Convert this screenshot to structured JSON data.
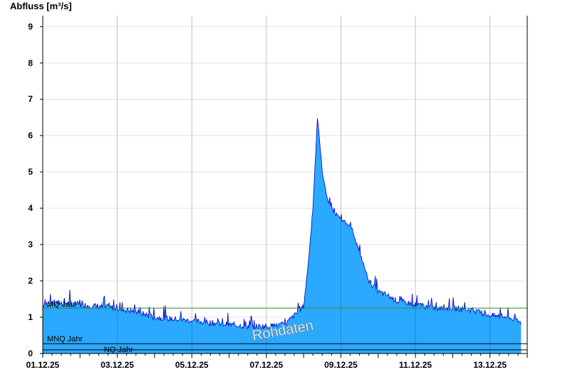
{
  "chart_data": {
    "type": "area",
    "title": "",
    "xlabel": "",
    "ylabel": "Abfluss [m³/s]",
    "ylim": [
      0,
      9.3
    ],
    "yticks": [
      0,
      1,
      2,
      3,
      4,
      5,
      6,
      7,
      8,
      9
    ],
    "xlim": [
      "2025-12-01T00:00",
      "2025-12-14T00:00"
    ],
    "x_tick_labels": [
      "01.12.25",
      "03.12.25",
      "05.12.25",
      "07.12.25",
      "09.12.25",
      "11.12.25",
      "13.12.25"
    ],
    "grid": true,
    "fill_color": "#2aa9ff",
    "line_color": "#0000cc",
    "watermark": "Rohdaten",
    "reference_lines": [
      {
        "label": "MQ Jahr",
        "value": 1.25,
        "color": "#2e8b2e"
      },
      {
        "label": "MNQ Jahr",
        "value": 0.27,
        "color": "#000000"
      },
      {
        "label": "NQ Jahr",
        "value": 0.1,
        "color": "#000000"
      }
    ],
    "series": [
      {
        "x": [
          "2025-12-01T00:00",
          "2025-12-01T12:00",
          "2025-12-02T00:00",
          "2025-12-02T12:00",
          "2025-12-03T00:00",
          "2025-12-03T12:00",
          "2025-12-04T00:00",
          "2025-12-04T12:00",
          "2025-12-05T00:00",
          "2025-12-05T12:00",
          "2025-12-06T00:00",
          "2025-12-06T12:00",
          "2025-12-07T00:00",
          "2025-12-07T12:00",
          "2025-12-08T00:00",
          "2025-12-08T03:00",
          "2025-12-08T06:00",
          "2025-12-08T09:00",
          "2025-12-08T12:00",
          "2025-12-08T15:00",
          "2025-12-08T18:00",
          "2025-12-08T21:00",
          "2025-12-09T00:00",
          "2025-12-09T06:00",
          "2025-12-09T12:00",
          "2025-12-09T18:00",
          "2025-12-10T00:00",
          "2025-12-10T06:00",
          "2025-12-10T12:00",
          "2025-12-11T00:00",
          "2025-12-11T12:00",
          "2025-12-12T00:00",
          "2025-12-12T12:00",
          "2025-12-13T00:00",
          "2025-12-13T12:00",
          "2025-12-13T20:00"
        ],
        "values": [
          1.35,
          1.4,
          1.35,
          1.3,
          1.25,
          1.15,
          1.0,
          0.95,
          0.9,
          0.85,
          0.8,
          0.75,
          0.75,
          0.8,
          1.3,
          2.5,
          4.0,
          6.5,
          5.0,
          4.3,
          4.0,
          3.8,
          3.7,
          3.5,
          2.8,
          2.0,
          1.7,
          1.6,
          1.45,
          1.35,
          1.25,
          1.25,
          1.2,
          1.05,
          1.0,
          0.85
        ]
      }
    ]
  }
}
